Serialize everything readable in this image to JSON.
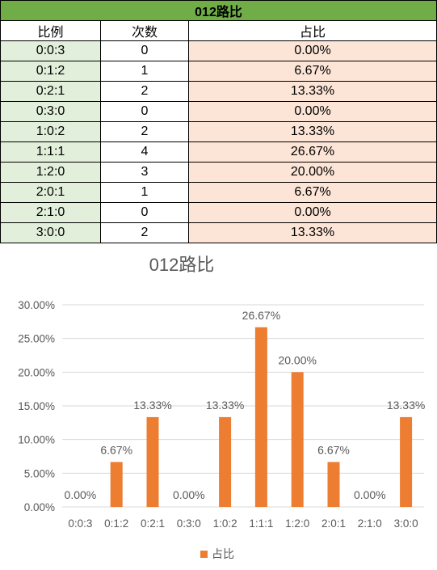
{
  "table": {
    "title": "012路比",
    "headers": [
      "比例",
      "次数",
      "占比"
    ],
    "rows": [
      {
        "ratio": "0:0:3",
        "count": "0",
        "pct": "0.00%"
      },
      {
        "ratio": "0:1:2",
        "count": "1",
        "pct": "6.67%"
      },
      {
        "ratio": "0:2:1",
        "count": "2",
        "pct": "13.33%"
      },
      {
        "ratio": "0:3:0",
        "count": "0",
        "pct": "0.00%"
      },
      {
        "ratio": "1:0:2",
        "count": "2",
        "pct": "13.33%"
      },
      {
        "ratio": "1:1:1",
        "count": "4",
        "pct": "26.67%"
      },
      {
        "ratio": "1:2:0",
        "count": "3",
        "pct": "20.00%"
      },
      {
        "ratio": "2:0:1",
        "count": "1",
        "pct": "6.67%"
      },
      {
        "ratio": "2:1:0",
        "count": "0",
        "pct": "0.00%"
      },
      {
        "ratio": "3:0:0",
        "count": "2",
        "pct": "13.33%"
      }
    ]
  },
  "chart_data": {
    "type": "bar",
    "title": "012路比",
    "categories": [
      "0:0:3",
      "0:1:2",
      "0:2:1",
      "0:3:0",
      "1:0:2",
      "1:1:1",
      "1:2:0",
      "2:0:1",
      "2:1:0",
      "3:0:0"
    ],
    "series": [
      {
        "name": "占比",
        "values": [
          0.0,
          6.67,
          13.33,
          0.0,
          13.33,
          26.67,
          20.0,
          6.67,
          0.0,
          13.33
        ],
        "color": "#ed7d31"
      }
    ],
    "data_labels": [
      "0.00%",
      "6.67%",
      "13.33%",
      "0.00%",
      "13.33%",
      "26.67%",
      "20.00%",
      "6.67%",
      "0.00%",
      "13.33%"
    ],
    "y_ticks": [
      "0.00%",
      "5.00%",
      "10.00%",
      "15.00%",
      "20.00%",
      "25.00%",
      "30.00%"
    ],
    "ylim": [
      0,
      30
    ],
    "y_step": 5,
    "grid": true,
    "legend": "bottom",
    "colors": {
      "gridline": "#d9d9d9",
      "text": "#595959",
      "title": "#595959"
    }
  }
}
